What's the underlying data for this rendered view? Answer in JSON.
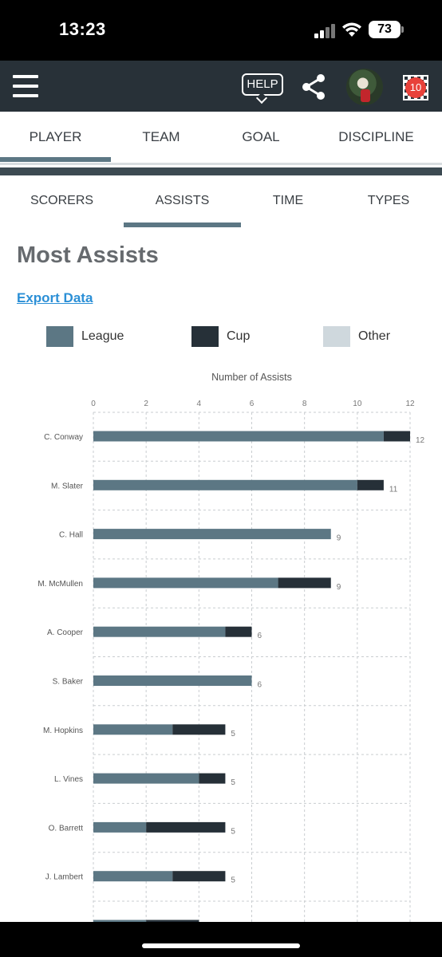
{
  "status_bar": {
    "time": "13:23",
    "battery": "73"
  },
  "header": {
    "help_label": "HELP",
    "notification_count": "10"
  },
  "main_tabs": [
    {
      "label": "PLAYER",
      "active": true
    },
    {
      "label": "TEAM",
      "active": false
    },
    {
      "label": "GOAL",
      "active": false
    },
    {
      "label": "DISCIPLINE",
      "active": false
    }
  ],
  "sub_tabs": [
    {
      "label": "SCORERS",
      "active": false
    },
    {
      "label": "ASSISTS",
      "active": true
    },
    {
      "label": "TIME",
      "active": false
    },
    {
      "label": "TYPES",
      "active": false
    }
  ],
  "page": {
    "title": "Most Assists",
    "export_label": "Export Data"
  },
  "legend": [
    {
      "label": "League",
      "color": "#5c7784"
    },
    {
      "label": "Cup",
      "color": "#263038"
    },
    {
      "label": "Other",
      "color": "#cfd8dd"
    }
  ],
  "chart_data": {
    "type": "bar",
    "orientation": "horizontal",
    "stacked": true,
    "title": "Number of Assists",
    "xlim": [
      0,
      12
    ],
    "x_ticks": [
      "0",
      "2",
      "4",
      "6",
      "8",
      "10",
      "12"
    ],
    "grid": true,
    "categories": [
      "C. Conway",
      "M. Slater",
      "C. Hall",
      "M. McMullen",
      "A. Cooper",
      "S. Baker",
      "M. Hopkins",
      "L. Vines",
      "O. Barrett",
      "J. Lambert",
      ""
    ],
    "series": [
      {
        "name": "League",
        "color": "#5c7784",
        "values": [
          11,
          10,
          9,
          7,
          5,
          6,
          3,
          4,
          2,
          3,
          2
        ]
      },
      {
        "name": "Cup",
        "color": "#263038",
        "values": [
          1,
          1,
          0,
          2,
          1,
          0,
          2,
          1,
          3,
          2,
          2
        ]
      },
      {
        "name": "Other",
        "color": "#cfd8dd",
        "values": [
          0,
          0,
          0,
          0,
          0,
          0,
          0,
          0,
          0,
          0,
          0
        ]
      }
    ],
    "totals": [
      "12",
      "11",
      "9",
      "9",
      "6",
      "6",
      "5",
      "5",
      "5",
      "5",
      ""
    ]
  }
}
